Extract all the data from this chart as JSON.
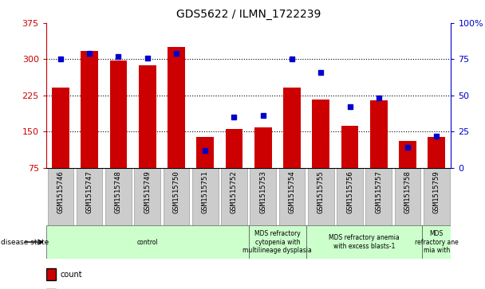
{
  "title": "GDS5622 / ILMN_1722239",
  "samples": [
    "GSM1515746",
    "GSM1515747",
    "GSM1515748",
    "GSM1515749",
    "GSM1515750",
    "GSM1515751",
    "GSM1515752",
    "GSM1515753",
    "GSM1515754",
    "GSM1515755",
    "GSM1515756",
    "GSM1515757",
    "GSM1515758",
    "GSM1515759"
  ],
  "counts": [
    242,
    318,
    298,
    288,
    325,
    138,
    155,
    158,
    242,
    216,
    162,
    215,
    130,
    138
  ],
  "percentiles": [
    75,
    79,
    77,
    76,
    79,
    12,
    35,
    36,
    75,
    66,
    42,
    48,
    14,
    22
  ],
  "ylim_left": [
    75,
    375
  ],
  "ylim_right": [
    0,
    100
  ],
  "yticks_left": [
    75,
    150,
    225,
    300,
    375
  ],
  "yticks_right": [
    0,
    25,
    50,
    75,
    100
  ],
  "bar_color": "#cc0000",
  "dot_color": "#0000cc",
  "grid_color": "#000000",
  "axis_color_left": "#cc0000",
  "axis_color_right": "#0000cc",
  "bg_color": "#ffffff",
  "tick_bg": "#cccccc",
  "disease_groups": [
    {
      "label": "control",
      "start": 0,
      "end": 7,
      "color": "#ccffcc"
    },
    {
      "label": "MDS refractory\ncytopenia with\nmultilineage dysplasia",
      "start": 7,
      "end": 9,
      "color": "#ccffcc"
    },
    {
      "label": "MDS refractory anemia\nwith excess blasts-1",
      "start": 9,
      "end": 13,
      "color": "#ccffcc"
    },
    {
      "label": "MDS\nrefractory ane\nmia with",
      "start": 13,
      "end": 14,
      "color": "#ccffcc"
    }
  ]
}
